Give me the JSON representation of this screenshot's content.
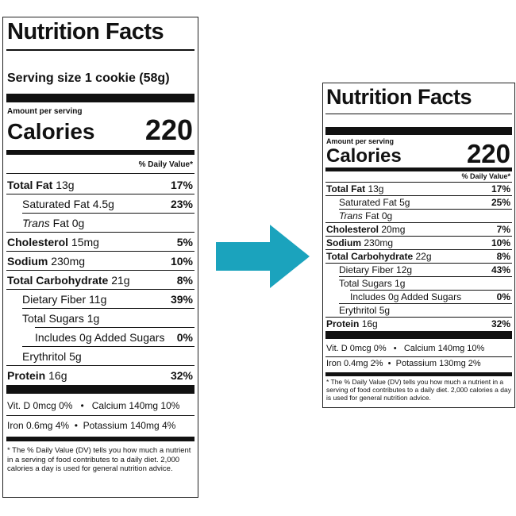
{
  "left": {
    "title": "Nutrition Facts",
    "serving_size": "Serving size 1 cookie (58g)",
    "amount_per_serving": "Amount per serving",
    "calories_label": "Calories",
    "calories_value": "220",
    "dv_header": "% Daily Value*",
    "nutrients": [
      {
        "name": "Total Fat",
        "amount": "13g",
        "dv": "17%"
      },
      {
        "name": "Saturated Fat",
        "amount": "4.5g",
        "dv": "23%"
      },
      {
        "name": "Trans",
        "amount": "Fat 0g",
        "dv": ""
      },
      {
        "name": "Cholesterol",
        "amount": "15mg",
        "dv": "5%"
      },
      {
        "name": "Sodium",
        "amount": "230mg",
        "dv": "10%"
      },
      {
        "name": "Total Carbohydrate",
        "amount": "21g",
        "dv": "8%"
      },
      {
        "name": "Dietary Fiber",
        "amount": "11g",
        "dv": "39%"
      },
      {
        "name": "Total Sugars",
        "amount": "1g",
        "dv": ""
      },
      {
        "name": "Includes 0g Added Sugars",
        "amount": "",
        "dv": "0%"
      },
      {
        "name": "Erythritol",
        "amount": "5g",
        "dv": ""
      },
      {
        "name": "Protein",
        "amount": "16g",
        "dv": "32%"
      }
    ],
    "vitamins": [
      {
        "left": "Vit. D 0mcg 0%",
        "right": "Calcium 140mg 10%"
      },
      {
        "left": "Iron 0.6mg 4%",
        "right": "Potassium 140mg 4%"
      }
    ],
    "bullet": "•",
    "footnote": "* The % Daily Value (DV) tells you how much a nutrient in a serving of food contributes to a daily diet. 2,000 calories a day is used for general nutrition advice."
  },
  "right": {
    "title": "Nutrition Facts",
    "amount_per_serving": "Amount per serving",
    "calories_label": "Calories",
    "calories_value": "220",
    "dv_header": "% Daily Value*",
    "nutrients": [
      {
        "name": "Total Fat",
        "amount": "13g",
        "dv": "17%"
      },
      {
        "name": "Saturated Fat",
        "amount": "5g",
        "dv": "25%"
      },
      {
        "name": "Trans",
        "amount": "Fat 0g",
        "dv": ""
      },
      {
        "name": "Cholesterol",
        "amount": "20mg",
        "dv": "7%"
      },
      {
        "name": "Sodium",
        "amount": "230mg",
        "dv": "10%"
      },
      {
        "name": "Total Carbohydrate",
        "amount": "22g",
        "dv": "8%"
      },
      {
        "name": "Dietary Fiber",
        "amount": "12g",
        "dv": "43%"
      },
      {
        "name": "Total Sugars",
        "amount": "1g",
        "dv": ""
      },
      {
        "name": "Includes 0g Added Sugars",
        "amount": "",
        "dv": "0%"
      },
      {
        "name": "Erythritol",
        "amount": "5g",
        "dv": ""
      },
      {
        "name": "Protein",
        "amount": "16g",
        "dv": "32%"
      }
    ],
    "vitamins": [
      {
        "left": "Vit. D 0mcg 0%",
        "right": "Calcium 140mg 10%"
      },
      {
        "left": "Iron 0.4mg 2%",
        "right": "Potassium 130mg 2%"
      }
    ],
    "bullet": "•",
    "footnote": "* The % Daily Value (DV) tells you how much a nutrient in a serving of food contributes to a daily diet. 2,000 calories a day is used for general nutrition advice."
  },
  "colors": {
    "arrow": "#1ba3bd",
    "ink": "#111111"
  }
}
